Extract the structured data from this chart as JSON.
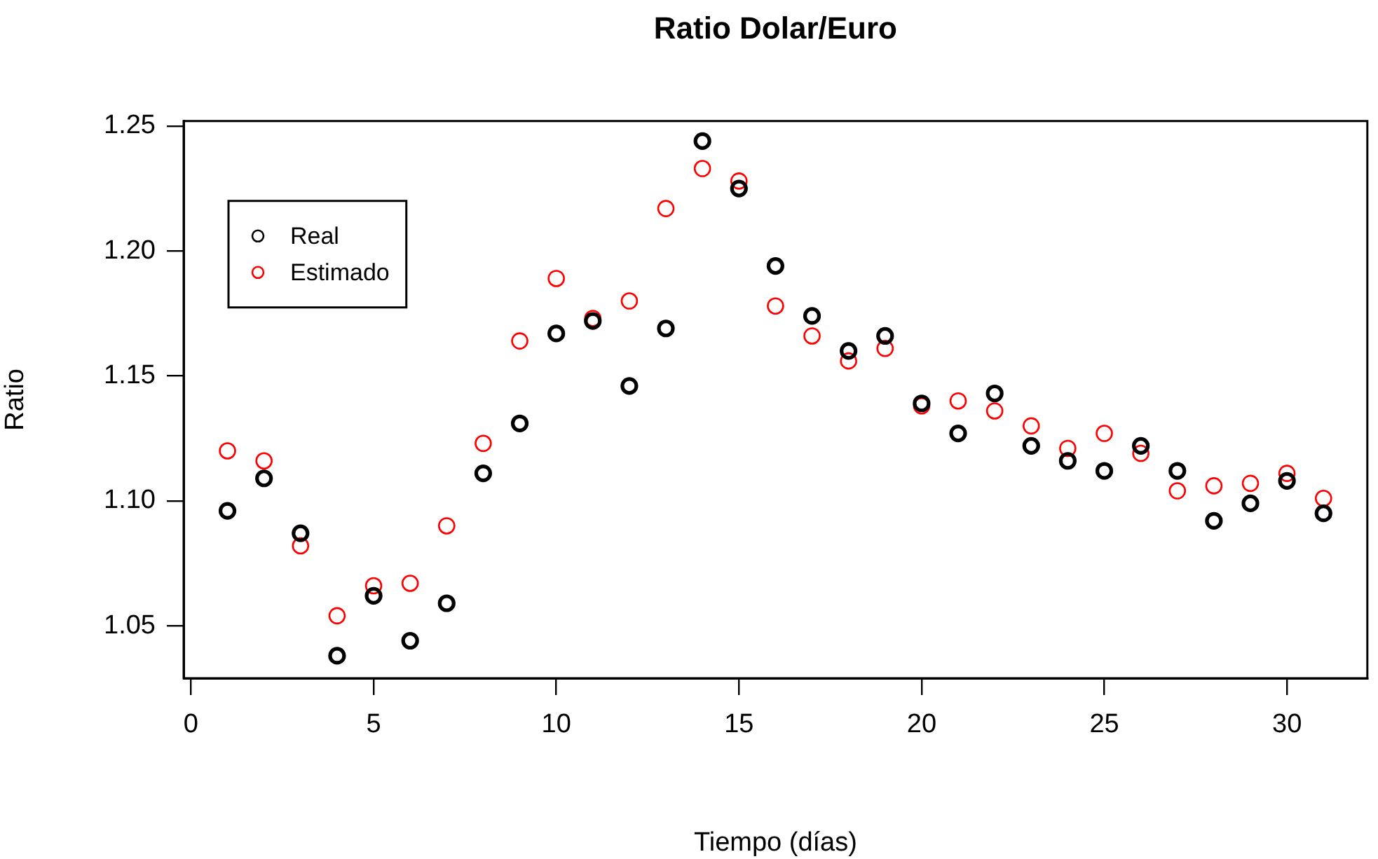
{
  "chart_data": {
    "type": "scatter",
    "title": "Ratio Dolar/Euro",
    "xlabel": "Tiempo (días)",
    "ylabel": "Ratio",
    "x": [
      1,
      2,
      3,
      4,
      5,
      6,
      7,
      8,
      9,
      10,
      11,
      12,
      13,
      14,
      15,
      16,
      17,
      18,
      19,
      20,
      21,
      22,
      23,
      24,
      25,
      26,
      27,
      28,
      29,
      30,
      31
    ],
    "series": [
      {
        "name": "Real",
        "color": "#000000",
        "values": [
          1.096,
          1.109,
          1.087,
          1.038,
          1.062,
          1.044,
          1.059,
          1.111,
          1.131,
          1.167,
          1.172,
          1.146,
          1.169,
          1.244,
          1.225,
          1.194,
          1.174,
          1.16,
          1.166,
          1.139,
          1.127,
          1.143,
          1.122,
          1.116,
          1.112,
          1.122,
          1.112,
          1.092,
          1.099,
          1.108,
          1.095
        ]
      },
      {
        "name": "Estimado",
        "color": "#ff0000",
        "values": [
          1.12,
          1.116,
          1.082,
          1.054,
          1.066,
          1.067,
          1.09,
          1.123,
          1.164,
          1.189,
          1.173,
          1.18,
          1.217,
          1.233,
          1.228,
          1.178,
          1.166,
          1.156,
          1.161,
          1.138,
          1.14,
          1.136,
          1.13,
          1.121,
          1.127,
          1.119,
          1.104,
          1.106,
          1.107,
          1.111,
          1.101
        ]
      }
    ],
    "xlim": [
      -0.2,
      32.2
    ],
    "xticks": [
      0,
      5,
      10,
      15,
      20,
      25,
      30
    ],
    "ylim": [
      1.029,
      1.252
    ],
    "yticks": [
      1.05,
      {
        "value": 1.1,
        "label": "1.10"
      },
      1.15,
      {
        "value": 1.2,
        "label": "1.20"
      },
      1.25
    ],
    "legend": "top left",
    "marker": "circle"
  }
}
